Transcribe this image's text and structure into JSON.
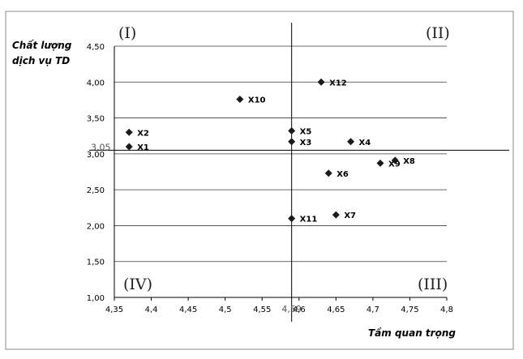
{
  "chart_data": {
    "type": "scatter",
    "xlabel": "Tầm quan trọng",
    "ylabel_lines": [
      "Chất lượng",
      "dịch vụ TD"
    ],
    "xlim": [
      4.35,
      4.8
    ],
    "ylim": [
      1.0,
      4.5
    ],
    "x_ticks": [
      "4,35",
      "4,4",
      "4,45",
      "4,5",
      "4,55",
      "4,6",
      "4,65",
      "4,7",
      "4,75",
      "4,8"
    ],
    "x_tick_values": [
      4.35,
      4.4,
      4.45,
      4.5,
      4.55,
      4.6,
      4.65,
      4.7,
      4.75,
      4.8
    ],
    "y_ticks": [
      "1,00",
      "1,50",
      "2,00",
      "2,50",
      "3,00",
      "3,50",
      "4,00",
      "4,50"
    ],
    "y_tick_values": [
      1.0,
      1.5,
      2.0,
      2.5,
      3.0,
      3.5,
      4.0,
      4.5
    ],
    "grid": "horizontal",
    "reference_lines": {
      "x": {
        "value": 4.59,
        "label": "4,59"
      },
      "y": {
        "value": 3.05,
        "label": "3,05"
      }
    },
    "quadrant_labels": {
      "top_left": "(I)",
      "top_right": "(II)",
      "bottom_right": "(III)",
      "bottom_left": "(IV)"
    },
    "points": [
      {
        "label": "X1",
        "x": 4.37,
        "y": 3.1
      },
      {
        "label": "X2",
        "x": 4.37,
        "y": 3.3
      },
      {
        "label": "X3",
        "x": 4.59,
        "y": 3.17
      },
      {
        "label": "X4",
        "x": 4.67,
        "y": 3.17
      },
      {
        "label": "X5",
        "x": 4.59,
        "y": 3.32
      },
      {
        "label": "X6",
        "x": 4.64,
        "y": 2.73
      },
      {
        "label": "X7",
        "x": 4.65,
        "y": 2.15
      },
      {
        "label": "X8",
        "x": 4.73,
        "y": 2.91
      },
      {
        "label": "X9",
        "x": 4.71,
        "y": 2.87
      },
      {
        "label": "X10",
        "x": 4.52,
        "y": 3.76
      },
      {
        "label": "X11",
        "x": 4.59,
        "y": 2.1
      },
      {
        "label": "X12",
        "x": 4.63,
        "y": 4.0
      }
    ]
  }
}
